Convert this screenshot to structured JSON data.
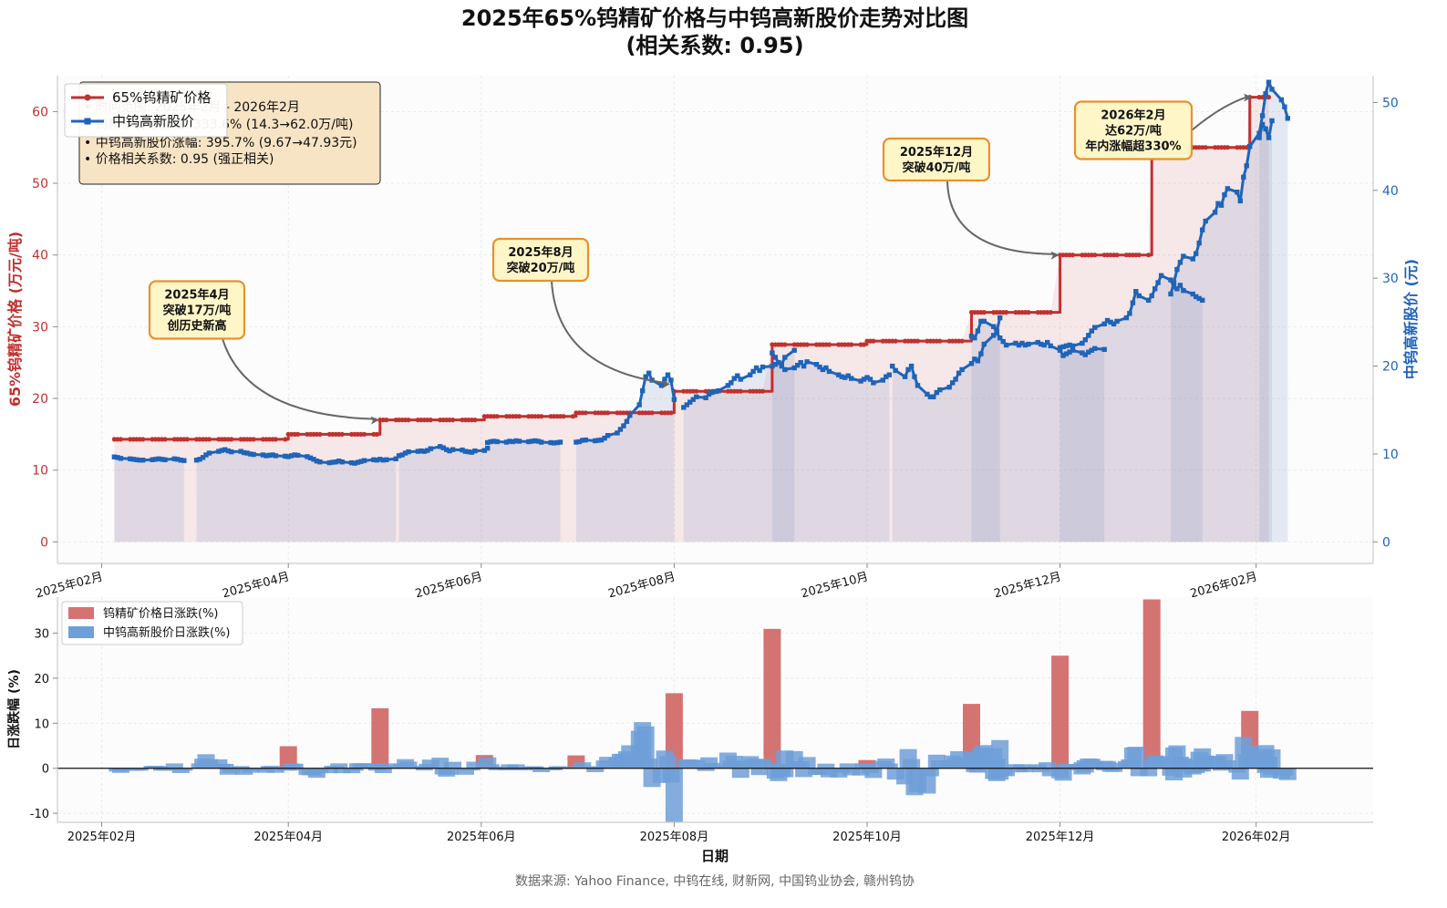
{
  "title_line1": "2025年65%钨精矿价格与中钨高新股价走势对比图",
  "title_line2": "(相关系数: 0.95)",
  "colors": {
    "ore": "#c0312f",
    "stock": "#1f64b8",
    "ore_bar": "#d47472",
    "stock_bar": "#6e9fd8",
    "info_bg": "#f7e4c4",
    "ann_bg": "#fff6c8",
    "ann_border": "#e8912c"
  },
  "chart_data": [
    {
      "type": "line",
      "x_axis": {
        "type": "date",
        "ticks": [
          "2025-02-01",
          "2025-04-01",
          "2025-06-01",
          "2025-08-01",
          "2025-10-01",
          "2025-12-01",
          "2026-02-01"
        ],
        "tick_labels": [
          "2025年02月",
          "2025年04月",
          "2025年06月",
          "2025年08月",
          "2025年10月",
          "2025年12月",
          "2026年02月"
        ],
        "range": [
          "2025-01-18",
          "2026-03-10"
        ]
      },
      "y_left": {
        "label": "65%钨精矿价格 (万元/吨)",
        "ticks": [
          0,
          10,
          20,
          30,
          40,
          50,
          60
        ],
        "range": [
          -3,
          65
        ]
      },
      "y_right": {
        "label": "中钨高新股价 (元)",
        "ticks": [
          0,
          10,
          20,
          30,
          40,
          50
        ],
        "range": [
          -2.45,
          53.05
        ]
      },
      "grid": true,
      "legend": {
        "position": "top-left",
        "entries": [
          "65%钨精矿价格",
          "中钨高新股价"
        ]
      },
      "series": [
        {
          "name": "65%钨精矿价格",
          "axis": "left",
          "steps": [
            {
              "from": "2025-02-05",
              "to": "2025-03-31",
              "value": 14.3
            },
            {
              "from": "2025-04-01",
              "to": "2025-04-29",
              "value": 15.0
            },
            {
              "from": "2025-04-30",
              "to": "2025-06-01",
              "value": 17.0
            },
            {
              "from": "2025-06-02",
              "to": "2025-06-30",
              "value": 17.5
            },
            {
              "from": "2025-07-01",
              "to": "2025-07-31",
              "value": 18.0
            },
            {
              "from": "2025-08-01",
              "to": "2025-08-31",
              "value": 21.0
            },
            {
              "from": "2025-09-01",
              "to": "2025-09-30",
              "value": 27.5
            },
            {
              "from": "2025-10-01",
              "to": "2025-10-31",
              "value": 28.0
            },
            {
              "from": "2025-11-01",
              "to": "2025-11-30",
              "value": 32.0
            },
            {
              "from": "2025-12-01",
              "to": "2025-12-29",
              "value": 40.0
            },
            {
              "from": "2025-12-30",
              "to": "2026-01-29",
              "value": 55.0
            },
            {
              "from": "2026-01-30",
              "to": "2026-02-05",
              "value": 62.0
            }
          ]
        },
        {
          "name": "中钨高新股价",
          "axis": "right",
          "segments": [
            {
              "start": "2025-02-05",
              "values": [
                9.67,
                9.6,
                9.5,
                9.45,
                9.4,
                9.35,
                9.3,
                9.3,
                9.35,
                9.4,
                9.45,
                9.4,
                9.35,
                9.45,
                9.4,
                9.3,
                9.25
              ]
            },
            {
              "start": "2025-03-03",
              "values": [
                9.3,
                9.4,
                9.6,
                9.9,
                10.1,
                10.3,
                10.4,
                10.5,
                10.35,
                10.25,
                10.3,
                10.15,
                10.1,
                10.0,
                9.95,
                9.9,
                9.8,
                9.85,
                9.9,
                9.8,
                9.75,
                9.7,
                9.8,
                9.9,
                9.85,
                9.7,
                9.55,
                9.4,
                9.2,
                9.1,
                9.0,
                9.05,
                9.1,
                9.2,
                9.1,
                9.0,
                8.95,
                9.05,
                9.15,
                9.25,
                9.35,
                9.3,
                9.4,
                9.3,
                9.35,
                9.45
              ]
            },
            {
              "start": "2025-05-06",
              "values": [
                9.8,
                9.9,
                10.1,
                10.25,
                10.3,
                10.35,
                10.3,
                10.4,
                10.6,
                10.85,
                10.7,
                10.5,
                10.35,
                10.5,
                10.45,
                10.3,
                10.25,
                10.2,
                10.35,
                10.4,
                10.65
              ]
            },
            {
              "start": "2025-06-03",
              "values": [
                11.3,
                11.4,
                11.45,
                11.4,
                11.35,
                11.45,
                11.4,
                11.5,
                11.45,
                11.4,
                11.45,
                11.5,
                11.45,
                11.35,
                11.3,
                11.25,
                11.3,
                11.35
              ]
            },
            {
              "start": "2025-07-01",
              "values": [
                11.35,
                11.4,
                11.55,
                11.6,
                11.5,
                11.55,
                11.6,
                11.8,
                12.1,
                12.4,
                12.8,
                13.2,
                13.7,
                14.4,
                15.6,
                17.2,
                18.8,
                19.2,
                18.4,
                17.8,
                18.5,
                19.0,
                18.4,
                16.2
              ]
            },
            {
              "start": "2025-08-04",
              "values": [
                15.3,
                15.6,
                15.9,
                16.2,
                16.5,
                16.4,
                16.8,
                17.0,
                17.1,
                17.2,
                17.8,
                18.1,
                18.6,
                18.9,
                18.5,
                19.0,
                19.4,
                19.8,
                19.5,
                19.9,
                20.0,
                20.2,
                20.4,
                20.2,
                21.0,
                21.8
              ]
            },
            {
              "start": "2025-09-01",
              "values": [
                21.5,
                21.0,
                20.4,
                20.0,
                19.6,
                19.8,
                20.1,
                20.4,
                20.0,
                20.5,
                20.2,
                19.9,
                19.6,
                19.8,
                19.4,
                19.0,
                18.8,
                18.7,
                18.9,
                18.6,
                18.3,
                18.5,
                18.7,
                18.5,
                18.1,
                18.4,
                18.8,
                19.0
              ]
            },
            {
              "start": "2025-10-09",
              "values": [
                20.0,
                19.5,
                18.8,
                19.6,
                20.0,
                18.8,
                17.8,
                16.8,
                16.5,
                16.5,
                17.0,
                17.3,
                17.6,
                18.1,
                18.5,
                19.2,
                19.6,
                20.3,
                20.8,
                20.6,
                21.4,
                22.5,
                23.5,
                24.0,
                25.5
              ]
            },
            {
              "start": "2025-11-03",
              "values": [
                23.4,
                23.2,
                24.0,
                25.1,
                25.1,
                24.5,
                23.8,
                23.2,
                22.8,
                22.4,
                22.6,
                22.4,
                22.6,
                22.4,
                22.5,
                22.7,
                22.5,
                22.4,
                22.7,
                22.3,
                21.8,
                21.2,
                21.4,
                21.6,
                21.8,
                21.5,
                21.3,
                21.6,
                21.8,
                22.0,
                21.9
              ]
            },
            {
              "start": "2025-12-01",
              "values": [
                22.1,
                22.2,
                22.3,
                22.4,
                22.3,
                22.6,
                23.0,
                23.5,
                24.0,
                24.4,
                24.8,
                25.2,
                25.0,
                24.8,
                25.1,
                25.5,
                26.0,
                27.2,
                28.5,
                28.0,
                27.5,
                28.0,
                28.8,
                29.5,
                30.3,
                29.8,
                29.0,
                28.8,
                29.2,
                28.6,
                28.2,
                27.9,
                27.7,
                27.5
              ]
            },
            {
              "start": "2026-01-05",
              "values": [
                28.2,
                29.5,
                31.0,
                31.8,
                32.5,
                32.2,
                32.8,
                34.0,
                35.5,
                36.5,
                37.5,
                38.5,
                38.3,
                39.5,
                40.2,
                39.8,
                38.8,
                41.5,
                42.8,
                45.0,
                46.5,
                48.5,
                51.0,
                52.3,
                51.5,
                50.3,
                49.5,
                48.2
              ]
            },
            {
              "start": "2026-02-02",
              "values": [
                46.0,
                47.5,
                47.0,
                46.0,
                47.93
              ]
            }
          ]
        }
      ],
      "annotations": [
        {
          "lines": [
            "2025年4月",
            "突破17万/吨",
            "创历史新高"
          ],
          "at": [
            "2025-04-30",
            17.0
          ]
        },
        {
          "lines": [
            "2025年8月",
            "突破20万/吨"
          ],
          "at": [
            "2025-07-31",
            22.0
          ]
        },
        {
          "lines": [
            "2025年12月",
            "突破40万/吨"
          ],
          "at": [
            "2025-12-01",
            40.0
          ]
        },
        {
          "lines": [
            "2026年2月",
            "达62万/吨",
            "年内涨幅超330%"
          ],
          "at": [
            "2026-01-31",
            62.0
          ]
        }
      ],
      "info_box": [
        "• 时间范围: 2025年2月 - 2026年2月",
        "• 钨精矿价格涨幅: 333.6% (14.3→62.0万/吨)",
        "• 中钨高新股价涨幅: 395.7% (9.67→47.93元)",
        "• 价格相关系数: 0.95 (强正相关)"
      ]
    },
    {
      "type": "bar",
      "y_axis": {
        "label": "日涨跌幅 (%)",
        "ticks": [
          -10,
          0,
          10,
          20,
          30
        ],
        "range": [
          -12,
          38
        ]
      },
      "x_axis": {
        "label": "日期",
        "tick_labels": [
          "2025年02月",
          "2025年04月",
          "2025年06月",
          "2025年08月",
          "2025年10月",
          "2025年12月",
          "2026年02月"
        ]
      },
      "grid": true,
      "legend": {
        "position": "top-left",
        "entries": [
          "钨精矿价格日涨跌(%)",
          "中钨高新股价日涨跌(%)"
        ]
      },
      "series": [
        {
          "name": "钨精矿价格日涨跌(%)",
          "derived_from": "65%钨精矿价格"
        },
        {
          "name": "中钨高新股价日涨跌(%)",
          "derived_from": "中钨高新股价"
        }
      ]
    }
  ],
  "source_text": "数据来源: Yahoo Finance, 中钨在线, 财新网, 中国钨业协会, 赣州钨协"
}
